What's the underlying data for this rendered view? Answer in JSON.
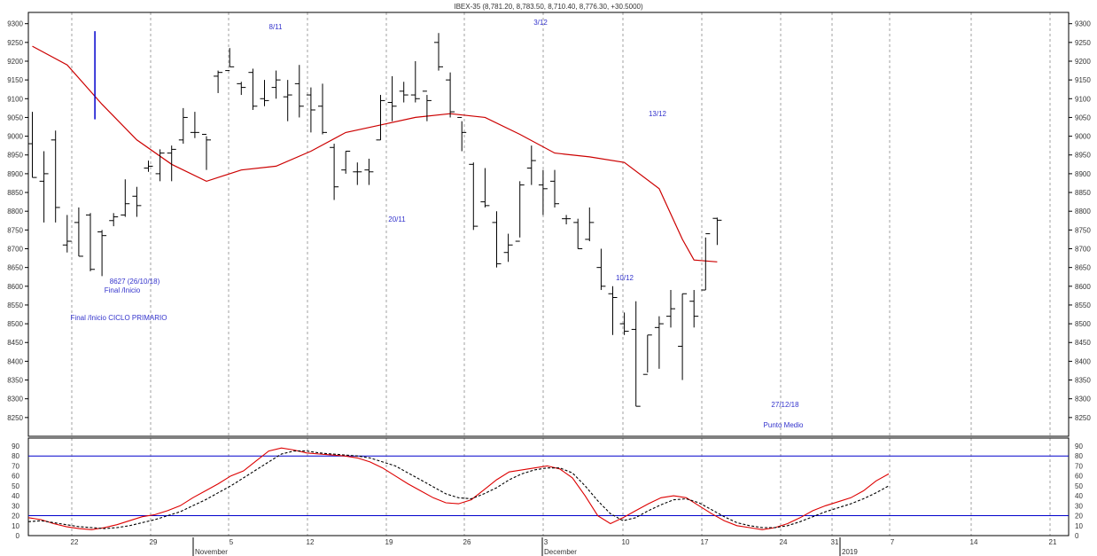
{
  "title": "IBEX-35 (8,781.20, 8,783.50, 8,710.40, 8,776.30, +30.5000)",
  "colors": {
    "ohlc": "#000000",
    "moving_average": "#cc0000",
    "oscillator_fast": "#dd0000",
    "oscillator_slow": "#000000",
    "oscillator_levels": "#0000cc",
    "annotation": "#3333cc",
    "marker": "#0000cc",
    "grid": "#a0a0a0"
  },
  "annotations": {
    "a811": "8/11",
    "a312": "3/12",
    "a1312": "13/12",
    "a2011": "20/11",
    "a1012": "10/12",
    "low_value": "8627 (26/10/18)",
    "low_label": "Final /Inicio",
    "primary_cycle": "Final /Inicio CICLO PRIMARIO",
    "low_2712": "27/12/18",
    "mid_point": "Punto Medio"
  },
  "chart_data": [
    {
      "type": "ohlc",
      "title": "IBEX-35 (8,781.20, 8,783.50, 8,710.40, 8,776.30, +30.5000)",
      "x_tick_labels": [
        "22",
        "29",
        "5",
        "12",
        "19",
        "26",
        "3",
        "10",
        "17",
        "24",
        "31",
        "7",
        "14",
        "21"
      ],
      "x_month_labels": [
        "November",
        "December",
        "2019"
      ],
      "y_ticks": [
        8250,
        8300,
        8350,
        8400,
        8450,
        8500,
        8550,
        8600,
        8650,
        8700,
        8750,
        8800,
        8850,
        8900,
        8950,
        9000,
        9050,
        9100,
        9150,
        9200,
        9250,
        9300
      ],
      "ylim": [
        8200,
        9330
      ],
      "grid": "vertical dotted",
      "bars_columns": [
        "day_index",
        "high",
        "low",
        "open",
        "close"
      ],
      "bars": [
        [
          0,
          9065,
          8890,
          8980,
          8890
        ],
        [
          1,
          8960,
          8770,
          8880,
          8900
        ],
        [
          2,
          9015,
          8770,
          8990,
          8810
        ],
        [
          3,
          8790,
          8690,
          8710,
          8720
        ],
        [
          4,
          8810,
          8680,
          8770,
          8680
        ],
        [
          5,
          8795,
          8640,
          8790,
          8645
        ],
        [
          6,
          8750,
          8627,
          8745,
          8735
        ],
        [
          7,
          8795,
          8760,
          8775,
          8785
        ],
        [
          8,
          8885,
          8785,
          8790,
          8820
        ],
        [
          9,
          8865,
          8785,
          8840,
          8815
        ],
        [
          10,
          8935,
          8905,
          8915,
          8920
        ],
        [
          11,
          8965,
          8880,
          8900,
          8955
        ],
        [
          12,
          8975,
          8880,
          8955,
          8965
        ],
        [
          13,
          9075,
          8980,
          8990,
          9050
        ],
        [
          14,
          9065,
          8995,
          9010,
          9010
        ],
        [
          15,
          9000,
          8910,
          9005,
          8990
        ],
        [
          16,
          9175,
          9115,
          9160,
          9170
        ],
        [
          17,
          9235,
          9185,
          9175,
          9185
        ],
        [
          18,
          9145,
          9110,
          9140,
          9130
        ],
        [
          19,
          9180,
          9070,
          9170,
          9080
        ],
        [
          20,
          9150,
          9080,
          9100,
          9095
        ],
        [
          21,
          9175,
          9100,
          9130,
          9150
        ],
        [
          22,
          9150,
          9040,
          9105,
          9110
        ],
        [
          23,
          9190,
          9050,
          9140,
          9080
        ],
        [
          24,
          9130,
          9010,
          9110,
          9070
        ],
        [
          25,
          9140,
          9005,
          9080,
          9010
        ],
        [
          26,
          8980,
          8830,
          8970,
          8865
        ],
        [
          27,
          8960,
          8900,
          8910,
          8960
        ],
        [
          28,
          8930,
          8870,
          8905,
          8905
        ],
        [
          29,
          8940,
          8870,
          8910,
          8905
        ],
        [
          30,
          9110,
          8990,
          8990,
          9095
        ],
        [
          31,
          9160,
          9040,
          9090,
          9080
        ],
        [
          32,
          9145,
          9090,
          9120,
          9110
        ],
        [
          33,
          9200,
          9090,
          9110,
          9100
        ],
        [
          34,
          9110,
          9040,
          9120,
          9095
        ],
        [
          35,
          9275,
          9175,
          9250,
          9185
        ],
        [
          36,
          9170,
          9050,
          9150,
          9065
        ],
        [
          37,
          9040,
          8960,
          9050,
          9010
        ],
        [
          38,
          8930,
          8750,
          8925,
          8760
        ],
        [
          39,
          8915,
          8810,
          8825,
          8815
        ],
        [
          40,
          8800,
          8650,
          8770,
          8660
        ],
        [
          41,
          8740,
          8665,
          8690,
          8710
        ],
        [
          42,
          8880,
          8730,
          8720,
          8870
        ],
        [
          43,
          8975,
          8870,
          8915,
          8935
        ],
        [
          44,
          8910,
          8790,
          8870,
          8860
        ],
        [
          45,
          8910,
          8810,
          8880,
          8820
        ],
        [
          46,
          8790,
          8765,
          8780,
          8780
        ],
        [
          47,
          8780,
          8700,
          8770,
          8700
        ],
        [
          48,
          8810,
          8720,
          8725,
          8770
        ],
        [
          49,
          8700,
          8590,
          8650,
          8600
        ],
        [
          50,
          8600,
          8470,
          8580,
          8570
        ],
        [
          51,
          8530,
          8470,
          8500,
          8480
        ],
        [
          52,
          8560,
          8280,
          8485,
          8280
        ],
        [
          53,
          8470,
          8370,
          8365,
          8470
        ],
        [
          54,
          8520,
          8380,
          8490,
          8500
        ],
        [
          55,
          8590,
          8490,
          8520,
          8540
        ],
        [
          56,
          8580,
          8350,
          8440,
          8580
        ],
        [
          57,
          8590,
          8490,
          8560,
          8520
        ],
        [
          58,
          8730,
          8590,
          8590,
          8740
        ],
        [
          59,
          8783,
          8710,
          8781,
          8776
        ]
      ],
      "moving_average": {
        "x": [
          0,
          3,
          6,
          9,
          12,
          15,
          18,
          21,
          24,
          27,
          30,
          33,
          36,
          39,
          42,
          45,
          48,
          51,
          54,
          56,
          57,
          59
        ],
        "values": [
          9240,
          9190,
          9085,
          8990,
          8925,
          8880,
          8910,
          8920,
          8960,
          9010,
          9030,
          9050,
          9060,
          9050,
          9005,
          8955,
          8945,
          8930,
          8860,
          8725,
          8670,
          8665
        ]
      },
      "marker_line": {
        "x": 6,
        "from": 9280,
        "to": 9045
      }
    },
    {
      "type": "line",
      "y_ticks": [
        0,
        10,
        20,
        30,
        40,
        50,
        60,
        70,
        80,
        90
      ],
      "ylim": [
        0,
        98
      ],
      "levels": [
        20,
        80
      ],
      "series": [
        {
          "values": [
            18,
            16,
            12,
            9,
            7,
            6,
            8,
            11,
            15,
            19,
            21,
            25,
            30,
            38,
            45,
            52,
            60,
            65,
            75,
            85,
            88,
            86,
            83,
            82,
            81,
            80,
            78,
            74,
            68,
            60,
            52,
            45,
            38,
            33,
            32,
            36,
            46,
            56,
            64,
            66,
            68,
            70,
            67,
            58,
            40,
            20,
            12,
            18,
            25,
            32,
            38,
            40,
            38,
            30,
            22,
            15,
            10,
            8,
            6,
            8,
            12,
            18,
            25,
            30,
            34,
            38,
            45,
            55,
            62
          ]
        },
        {
          "values": [
            14,
            15,
            13,
            11,
            9,
            8,
            7,
            8,
            10,
            13,
            16,
            20,
            24,
            30,
            36,
            43,
            50,
            58,
            66,
            74,
            82,
            85,
            85,
            83,
            82,
            81,
            80,
            78,
            74,
            70,
            63,
            56,
            49,
            42,
            38,
            37,
            42,
            48,
            56,
            62,
            66,
            68,
            68,
            63,
            50,
            35,
            22,
            15,
            18,
            25,
            31,
            36,
            37,
            33,
            26,
            19,
            13,
            10,
            8,
            8,
            10,
            14,
            19,
            24,
            28,
            32,
            37,
            43,
            50
          ]
        }
      ]
    }
  ]
}
